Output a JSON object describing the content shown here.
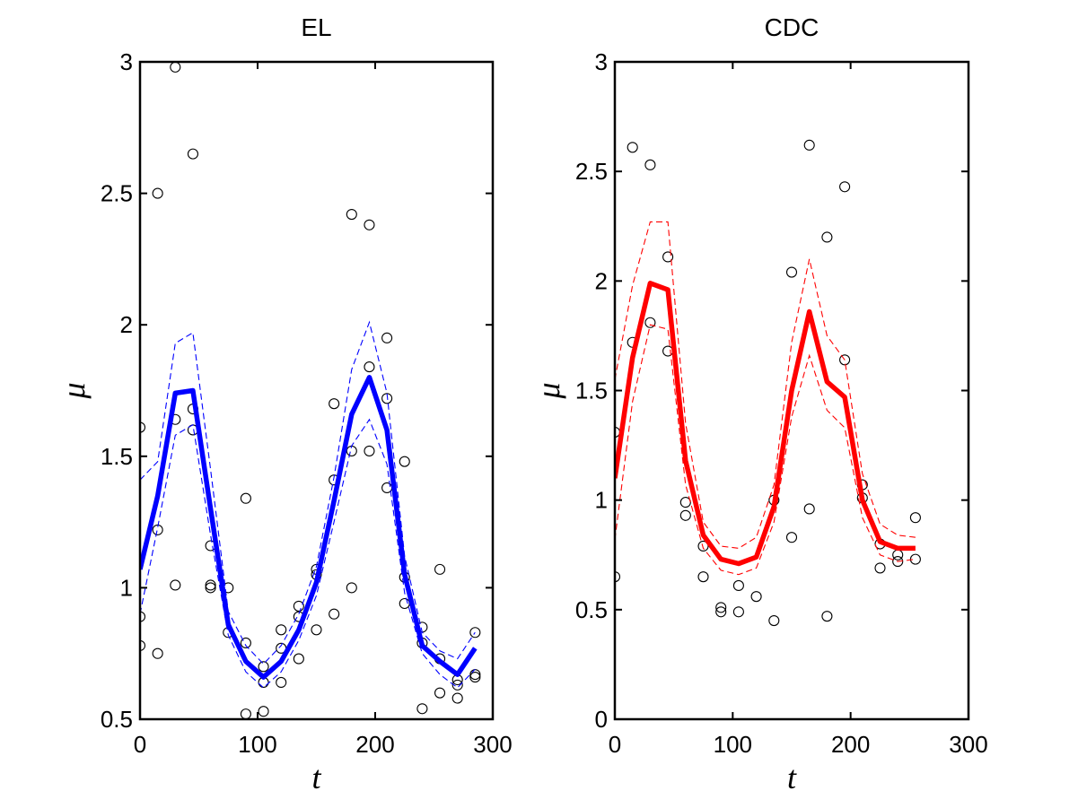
{
  "chart_data": [
    {
      "type": "line",
      "title": "EL",
      "xlabel": "t",
      "ylabel": "μ",
      "xlim": [
        0,
        300
      ],
      "ylim": [
        0.5,
        3
      ],
      "xticks": [
        0,
        100,
        200,
        300
      ],
      "yticks": [
        0.5,
        1,
        1.5,
        2,
        2.5,
        3
      ],
      "xtick_labels": [
        "0",
        "100",
        "200",
        "300"
      ],
      "ytick_labels": [
        "0.5",
        "1",
        "1.5",
        "2",
        "2.5",
        "3"
      ],
      "grid": false,
      "color": "#0000ff",
      "x": [
        0,
        15,
        30,
        45,
        60,
        75,
        90,
        105,
        120,
        135,
        150,
        165,
        180,
        195,
        210,
        225,
        240,
        255,
        270,
        285
      ],
      "mean": [
        1.07,
        1.35,
        1.74,
        1.75,
        1.3,
        0.86,
        0.72,
        0.66,
        0.72,
        0.84,
        1.02,
        1.33,
        1.66,
        1.8,
        1.6,
        1.05,
        0.78,
        0.72,
        0.67,
        0.77
      ],
      "upper": [
        1.41,
        1.48,
        1.93,
        1.97,
        1.45,
        0.91,
        0.78,
        0.71,
        0.78,
        0.9,
        1.08,
        1.42,
        1.83,
        2.01,
        1.74,
        1.12,
        0.83,
        0.76,
        0.73,
        0.83
      ],
      "lower": [
        0.9,
        1.23,
        1.58,
        1.62,
        1.2,
        0.82,
        0.68,
        0.62,
        0.68,
        0.8,
        0.97,
        1.25,
        1.54,
        1.64,
        1.47,
        0.98,
        0.75,
        0.67,
        0.62,
        0.69
      ],
      "scatter": [
        [
          0,
          1.61
        ],
        [
          0,
          0.89
        ],
        [
          0,
          0.78
        ],
        [
          15,
          2.5
        ],
        [
          15,
          1.22
        ],
        [
          15,
          0.75
        ],
        [
          30,
          2.98
        ],
        [
          30,
          1.64
        ],
        [
          30,
          1.01
        ],
        [
          45,
          2.65
        ],
        [
          45,
          1.68
        ],
        [
          45,
          1.6
        ],
        [
          60,
          1.16
        ],
        [
          60,
          1.01
        ],
        [
          60,
          1.0
        ],
        [
          75,
          1.0
        ],
        [
          75,
          0.83
        ],
        [
          90,
          1.34
        ],
        [
          90,
          0.79
        ],
        [
          90,
          0.52
        ],
        [
          105,
          0.7
        ],
        [
          105,
          0.64
        ],
        [
          105,
          0.53
        ],
        [
          120,
          0.84
        ],
        [
          120,
          0.77
        ],
        [
          120,
          0.64
        ],
        [
          135,
          0.93
        ],
        [
          135,
          0.89
        ],
        [
          135,
          0.73
        ],
        [
          150,
          1.07
        ],
        [
          150,
          1.05
        ],
        [
          150,
          0.84
        ],
        [
          165,
          1.7
        ],
        [
          165,
          1.41
        ],
        [
          165,
          0.9
        ],
        [
          180,
          2.42
        ],
        [
          180,
          1.52
        ],
        [
          180,
          1.0
        ],
        [
          195,
          2.38
        ],
        [
          195,
          1.84
        ],
        [
          195,
          1.52
        ],
        [
          210,
          1.95
        ],
        [
          210,
          1.72
        ],
        [
          210,
          1.38
        ],
        [
          225,
          1.48
        ],
        [
          225,
          1.04
        ],
        [
          225,
          0.94
        ],
        [
          240,
          0.85
        ],
        [
          240,
          0.79
        ],
        [
          240,
          0.54
        ],
        [
          255,
          1.07
        ],
        [
          255,
          0.73
        ],
        [
          255,
          0.6
        ],
        [
          270,
          0.65
        ],
        [
          270,
          0.63
        ],
        [
          270,
          0.58
        ],
        [
          285,
          0.83
        ],
        [
          285,
          0.67
        ],
        [
          285,
          0.66
        ]
      ]
    },
    {
      "type": "line",
      "title": "CDC",
      "xlabel": "t",
      "ylabel": "μ",
      "xlim": [
        0,
        300
      ],
      "ylim": [
        0,
        3
      ],
      "xticks": [
        0,
        100,
        200,
        300
      ],
      "yticks": [
        0,
        0.5,
        1,
        1.5,
        2,
        2.5,
        3
      ],
      "xtick_labels": [
        "0",
        "100",
        "200",
        "300"
      ],
      "ytick_labels": [
        "0",
        "0.5",
        "1",
        "1.5",
        "2",
        "2.5",
        "3"
      ],
      "grid": false,
      "color": "#ff0000",
      "x": [
        0,
        15,
        30,
        45,
        60,
        75,
        90,
        105,
        120,
        135,
        150,
        165,
        180,
        195,
        210,
        225,
        240,
        255
      ],
      "mean": [
        1.1,
        1.65,
        1.99,
        1.96,
        1.18,
        0.84,
        0.73,
        0.71,
        0.74,
        0.97,
        1.5,
        1.86,
        1.54,
        1.47,
        1.0,
        0.81,
        0.78,
        0.78
      ],
      "upper": [
        1.55,
        1.98,
        2.27,
        2.27,
        1.35,
        0.9,
        0.79,
        0.78,
        0.83,
        1.07,
        1.72,
        2.1,
        1.75,
        1.64,
        1.12,
        0.89,
        0.84,
        0.83
      ],
      "lower": [
        0.82,
        1.45,
        1.8,
        1.78,
        1.07,
        0.78,
        0.68,
        0.66,
        0.69,
        0.9,
        1.38,
        1.66,
        1.41,
        1.33,
        0.92,
        0.75,
        0.72,
        0.73
      ],
      "scatter": [
        [
          0,
          1.31
        ],
        [
          0,
          0.65
        ],
        [
          15,
          2.61
        ],
        [
          15,
          1.72
        ],
        [
          30,
          2.53
        ],
        [
          30,
          1.81
        ],
        [
          45,
          2.11
        ],
        [
          45,
          1.68
        ],
        [
          60,
          0.99
        ],
        [
          60,
          0.93
        ],
        [
          75,
          0.79
        ],
        [
          75,
          0.65
        ],
        [
          90,
          0.51
        ],
        [
          90,
          0.49
        ],
        [
          105,
          0.61
        ],
        [
          105,
          0.49
        ],
        [
          120,
          0.56
        ],
        [
          135,
          1.0
        ],
        [
          135,
          0.45
        ],
        [
          150,
          2.04
        ],
        [
          150,
          0.83
        ],
        [
          165,
          2.62
        ],
        [
          165,
          0.96
        ],
        [
          180,
          2.2
        ],
        [
          180,
          0.47
        ],
        [
          195,
          2.43
        ],
        [
          195,
          1.64
        ],
        [
          210,
          1.07
        ],
        [
          210,
          1.01
        ],
        [
          225,
          0.8
        ],
        [
          225,
          0.69
        ],
        [
          240,
          0.75
        ],
        [
          240,
          0.72
        ],
        [
          255,
          0.92
        ],
        [
          255,
          0.73
        ]
      ]
    }
  ]
}
